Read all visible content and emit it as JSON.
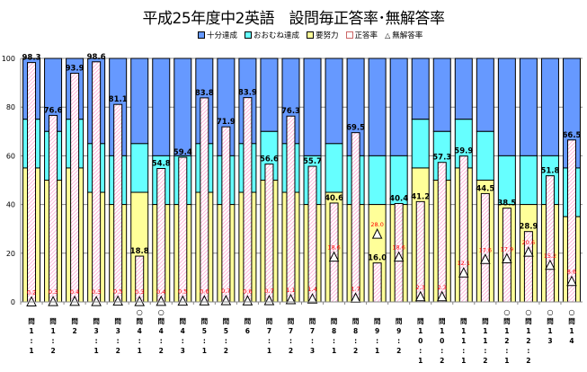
{
  "chart_data": {
    "type": "bar",
    "title": "平成25年度中2英語　設問毎正答率･無解答率",
    "legend": [
      "十分達成",
      "おおむね達成",
      "要努力",
      "正答率",
      "無解答率"
    ],
    "legend_position": "top",
    "colors": {
      "full": "#6699FF",
      "mostly": "#66FFFF",
      "effort": "#FFFF99",
      "correct": "#FF99CC",
      "noanswer": "#FFFFFF"
    },
    "ylim": [
      0,
      100
    ],
    "yticks": [
      0,
      20,
      40,
      60,
      80,
      100
    ],
    "grid": true,
    "categories": [
      "問1-1",
      "問1-2",
      "問2",
      "問3-1",
      "問3-2",
      "問4-1",
      "問4-2",
      "問4-3",
      "問5-1",
      "問5-2",
      "問6",
      "問7-1",
      "問7-2",
      "問7-3",
      "問8-1",
      "問8-2",
      "問9-1",
      "問9-2",
      "問10-1",
      "問10-2",
      "問11-1",
      "問11-2",
      "問12-1",
      "問12-2",
      "問13",
      "問14"
    ],
    "circle_marks": [
      false,
      false,
      false,
      false,
      false,
      true,
      true,
      false,
      false,
      false,
      false,
      false,
      false,
      false,
      false,
      false,
      false,
      false,
      false,
      false,
      false,
      false,
      true,
      true,
      true,
      true
    ],
    "circle_symbol": "○",
    "effort_upper": [
      55,
      50,
      55,
      45,
      40,
      45,
      40,
      40,
      45,
      40,
      45,
      50,
      45,
      40,
      45,
      40,
      40,
      40,
      55,
      50,
      55,
      50,
      40,
      40,
      40,
      35
    ],
    "mostly_upper": [
      75,
      70,
      75,
      65,
      60,
      65,
      60,
      60,
      65,
      60,
      65,
      70,
      65,
      60,
      65,
      60,
      60,
      60,
      75,
      70,
      75,
      70,
      60,
      60,
      60,
      55
    ],
    "series": [
      {
        "name": "正答率",
        "values": [
          98.3,
          76.6,
          93.9,
          98.6,
          81.1,
          18.8,
          54.8,
          59.4,
          83.8,
          71.9,
          83.9,
          56.6,
          76.3,
          55.7,
          40.6,
          69.5,
          16.0,
          40.4,
          41.2,
          57.3,
          59.9,
          44.5,
          38.5,
          28.9,
          51.8,
          66.5
        ]
      },
      {
        "name": "無解答率",
        "values": [
          0.2,
          0.3,
          0.4,
          0.3,
          0.5,
          0.3,
          0.4,
          0.5,
          0.6,
          0.7,
          0.6,
          0.7,
          1.1,
          1.4,
          18.6,
          1.7,
          28.0,
          18.6,
          2.3,
          2.3,
          12.1,
          17.6,
          17.9,
          20.6,
          15.2,
          8.6
        ]
      }
    ]
  }
}
